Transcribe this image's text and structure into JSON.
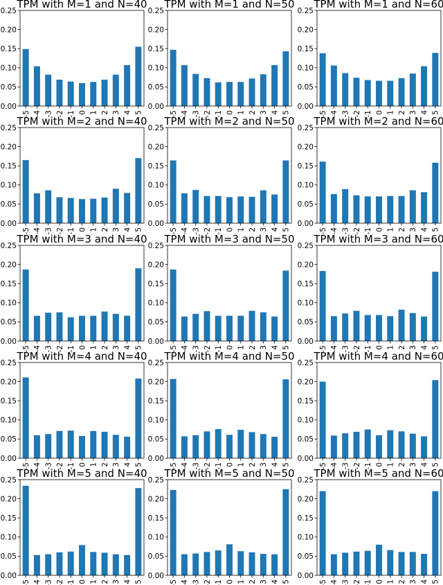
{
  "chart_data": [
    {
      "type": "bar",
      "title": "TPM with M=1 and N=40",
      "categories": [
        "-5",
        "-4",
        "-3",
        "-2",
        "-1",
        "0",
        "1",
        "2",
        "3",
        "4",
        "5"
      ],
      "values": [
        0.149,
        0.104,
        0.082,
        0.069,
        0.064,
        0.06,
        0.063,
        0.069,
        0.082,
        0.107,
        0.155
      ],
      "ylim": [
        0,
        0.25
      ],
      "yticks": [
        "0.00",
        "0.05",
        "0.10",
        "0.15",
        "0.20",
        "0.25"
      ],
      "color": "#1f77b4"
    },
    {
      "type": "bar",
      "title": "TPM with M=1 and N=50",
      "categories": [
        "-5",
        "-4",
        "-3",
        "-2",
        "-1",
        "0",
        "1",
        "2",
        "3",
        "4",
        "5"
      ],
      "values": [
        0.147,
        0.107,
        0.084,
        0.073,
        0.062,
        0.063,
        0.063,
        0.072,
        0.083,
        0.107,
        0.143
      ],
      "ylim": [
        0,
        0.25
      ],
      "yticks": [
        "0.00",
        "0.05",
        "0.10",
        "0.15",
        "0.20",
        "0.25"
      ],
      "color": "#1f77b4"
    },
    {
      "type": "bar",
      "title": "TPM with M=1 and N=60",
      "categories": [
        "-5",
        "-4",
        "-3",
        "-2",
        "-1",
        "0",
        "1",
        "2",
        "3",
        "4",
        "5"
      ],
      "values": [
        0.138,
        0.106,
        0.086,
        0.074,
        0.068,
        0.066,
        0.066,
        0.073,
        0.085,
        0.104,
        0.139
      ],
      "ylim": [
        0,
        0.25
      ],
      "yticks": [
        "0.00",
        "0.05",
        "0.10",
        "0.15",
        "0.20",
        "0.25"
      ],
      "color": "#1f77b4"
    },
    {
      "type": "bar",
      "title": "TPM with M=2 and N=40",
      "categories": [
        "-5",
        "-4",
        "-3",
        "-2",
        "-1",
        "0",
        "1",
        "2",
        "3",
        "4",
        "5"
      ],
      "values": [
        0.165,
        0.078,
        0.086,
        0.068,
        0.066,
        0.063,
        0.064,
        0.067,
        0.09,
        0.079,
        0.17
      ],
      "ylim": [
        0,
        0.25
      ],
      "yticks": [
        "0.00",
        "0.05",
        "0.10",
        "0.15",
        "0.20",
        "0.25"
      ],
      "color": "#1f77b4"
    },
    {
      "type": "bar",
      "title": "TPM with M=2 and N=50",
      "categories": [
        "-5",
        "-4",
        "-3",
        "-2",
        "-1",
        "0",
        "1",
        "2",
        "3",
        "4",
        "5"
      ],
      "values": [
        0.164,
        0.078,
        0.087,
        0.071,
        0.071,
        0.068,
        0.07,
        0.069,
        0.086,
        0.075,
        0.164
      ],
      "ylim": [
        0,
        0.25
      ],
      "yticks": [
        "0.00",
        "0.05",
        "0.10",
        "0.15",
        "0.20",
        "0.25"
      ],
      "color": "#1f77b4"
    },
    {
      "type": "bar",
      "title": "TPM with M=2 and N=60",
      "categories": [
        "-5",
        "-4",
        "-3",
        "-2",
        "-1",
        "0",
        "1",
        "2",
        "3",
        "4",
        "5"
      ],
      "values": [
        0.161,
        0.076,
        0.089,
        0.073,
        0.07,
        0.07,
        0.071,
        0.071,
        0.086,
        0.081,
        0.158
      ],
      "ylim": [
        0,
        0.25
      ],
      "yticks": [
        "0.00",
        "0.05",
        "0.10",
        "0.15",
        "0.20",
        "0.25"
      ],
      "color": "#1f77b4"
    },
    {
      "type": "bar",
      "title": "TPM with M=3 and N=40",
      "categories": [
        "-5",
        "-4",
        "-3",
        "-2",
        "-1",
        "0",
        "1",
        "2",
        "3",
        "4",
        "5"
      ],
      "values": [
        0.187,
        0.066,
        0.074,
        0.075,
        0.062,
        0.066,
        0.066,
        0.077,
        0.071,
        0.066,
        0.19
      ],
      "ylim": [
        0,
        0.25
      ],
      "yticks": [
        "0.00",
        "0.05",
        "0.10",
        "0.15",
        "0.20",
        "0.25"
      ],
      "color": "#1f77b4"
    },
    {
      "type": "bar",
      "title": "TPM with M=3 and N=50",
      "categories": [
        "-5",
        "-4",
        "-3",
        "-2",
        "-1",
        "0",
        "1",
        "2",
        "3",
        "4",
        "5"
      ],
      "values": [
        0.187,
        0.064,
        0.071,
        0.078,
        0.066,
        0.066,
        0.066,
        0.079,
        0.075,
        0.064,
        0.184
      ],
      "ylim": [
        0,
        0.25
      ],
      "yticks": [
        "0.00",
        "0.05",
        "0.10",
        "0.15",
        "0.20",
        "0.25"
      ],
      "color": "#1f77b4"
    },
    {
      "type": "bar",
      "title": "TPM with M=3 and N=60",
      "categories": [
        "-5",
        "-4",
        "-3",
        "-2",
        "-1",
        "0",
        "1",
        "2",
        "3",
        "4",
        "5"
      ],
      "values": [
        0.183,
        0.065,
        0.072,
        0.079,
        0.068,
        0.068,
        0.065,
        0.082,
        0.073,
        0.064,
        0.181
      ],
      "ylim": [
        0,
        0.25
      ],
      "yticks": [
        "0.00",
        "0.05",
        "0.10",
        "0.15",
        "0.20",
        "0.25"
      ],
      "color": "#1f77b4"
    },
    {
      "type": "bar",
      "title": "TPM with M=4 and N=40",
      "categories": [
        "-5",
        "-4",
        "-3",
        "-2",
        "-1",
        "0",
        "1",
        "2",
        "3",
        "4",
        "5"
      ],
      "values": [
        0.211,
        0.06,
        0.063,
        0.071,
        0.072,
        0.058,
        0.071,
        0.069,
        0.061,
        0.056,
        0.208
      ],
      "ylim": [
        0,
        0.25
      ],
      "yticks": [
        "0.00",
        "0.05",
        "0.10",
        "0.15",
        "0.20",
        "0.25"
      ],
      "color": "#1f77b4"
    },
    {
      "type": "bar",
      "title": "TPM with M=4 and N=50",
      "categories": [
        "-5",
        "-4",
        "-3",
        "-2",
        "-1",
        "0",
        "1",
        "2",
        "3",
        "4",
        "5"
      ],
      "values": [
        0.207,
        0.057,
        0.06,
        0.07,
        0.076,
        0.061,
        0.074,
        0.068,
        0.063,
        0.056,
        0.206
      ],
      "ylim": [
        0,
        0.25
      ],
      "yticks": [
        "0.00",
        "0.05",
        "0.10",
        "0.15",
        "0.20",
        "0.25"
      ],
      "color": "#1f77b4"
    },
    {
      "type": "bar",
      "title": "TPM with M=4 and N=60",
      "categories": [
        "-5",
        "-4",
        "-3",
        "-2",
        "-1",
        "0",
        "1",
        "2",
        "3",
        "4",
        "5"
      ],
      "values": [
        0.2,
        0.059,
        0.065,
        0.069,
        0.075,
        0.06,
        0.073,
        0.07,
        0.064,
        0.057,
        0.204
      ],
      "ylim": [
        0,
        0.25
      ],
      "yticks": [
        "0.00",
        "0.05",
        "0.10",
        "0.15",
        "0.20",
        "0.25"
      ],
      "color": "#1f77b4"
    },
    {
      "type": "bar",
      "title": "TPM with M=5 and N=40",
      "categories": [
        "-5",
        "-4",
        "-3",
        "-2",
        "-1",
        "0",
        "1",
        "2",
        "3",
        "4",
        "5"
      ],
      "values": [
        0.234,
        0.053,
        0.055,
        0.06,
        0.062,
        0.079,
        0.061,
        0.059,
        0.055,
        0.053,
        0.228
      ],
      "ylim": [
        0,
        0.25
      ],
      "yticks": [
        "0.00",
        "0.05",
        "0.10",
        "0.15",
        "0.20",
        "0.25"
      ],
      "color": "#1f77b4"
    },
    {
      "type": "bar",
      "title": "TPM with M=5 and N=50",
      "categories": [
        "-5",
        "-4",
        "-3",
        "-2",
        "-1",
        "0",
        "1",
        "2",
        "3",
        "4",
        "5"
      ],
      "values": [
        0.223,
        0.055,
        0.057,
        0.061,
        0.065,
        0.081,
        0.063,
        0.06,
        0.056,
        0.055,
        0.225
      ],
      "ylim": [
        0,
        0.25
      ],
      "yticks": [
        "0.00",
        "0.05",
        "0.10",
        "0.15",
        "0.20",
        "0.25"
      ],
      "color": "#1f77b4"
    },
    {
      "type": "bar",
      "title": "TPM with M=5 and N=60",
      "categories": [
        "-5",
        "-4",
        "-3",
        "-2",
        "-1",
        "0",
        "1",
        "2",
        "3",
        "4",
        "5"
      ],
      "values": [
        0.22,
        0.055,
        0.059,
        0.062,
        0.064,
        0.08,
        0.066,
        0.061,
        0.061,
        0.056,
        0.22
      ],
      "ylim": [
        0,
        0.25
      ],
      "yticks": [
        "0.00",
        "0.05",
        "0.10",
        "0.15",
        "0.20",
        "0.25"
      ],
      "color": "#1f77b4"
    }
  ]
}
